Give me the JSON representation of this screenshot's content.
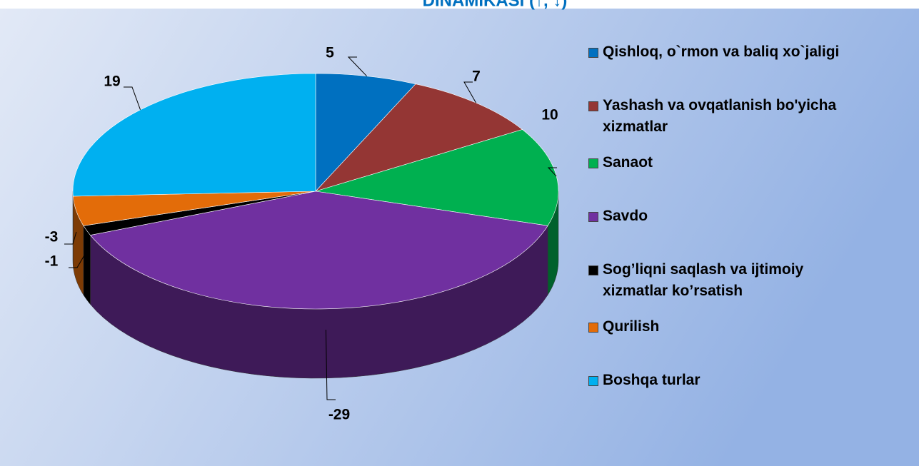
{
  "chart_data": {
    "type": "pie3d",
    "title": "DINAMIKASI (↑, ↓)",
    "categories": [
      "Qishloq, o`rmon va baliq xo`jaligi",
      "Yashash va ovqatlanish bo'yicha xizmatlar",
      "Sanaot",
      "Savdo",
      "Sog’liqni saqlash va ijtimoiy xizmatlar ko’rsatish",
      "Qurilish",
      "Boshqa  turlar"
    ],
    "values": [
      5,
      7,
      10,
      -29,
      -1,
      -3,
      19
    ],
    "colors": [
      "#0070c0",
      "#943634",
      "#00b050",
      "#7030a0",
      "#000000",
      "#e36c09",
      "#00b0f0"
    ],
    "legend": "right"
  }
}
